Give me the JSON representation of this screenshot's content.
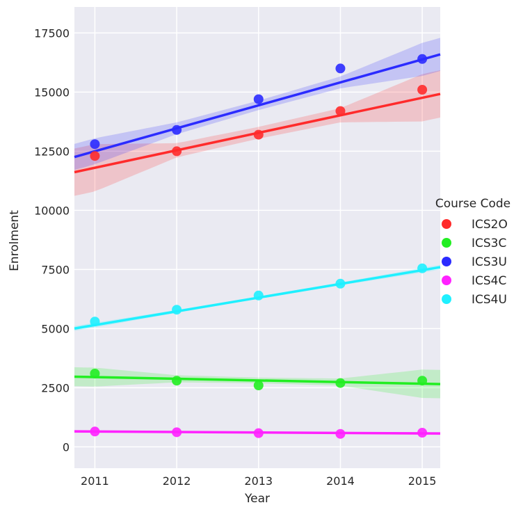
{
  "chart_data": {
    "type": "scatter",
    "xlabel": "Year",
    "ylabel": "Enrolment",
    "x_ticks": [
      "2011",
      "2012",
      "2013",
      "2014",
      "2015"
    ],
    "y_ticks": [
      "0",
      "2500",
      "5000",
      "7500",
      "10000",
      "12500",
      "15000",
      "17500"
    ],
    "xlim": [
      2010.75,
      2015.22
    ],
    "ylim": [
      -900,
      18600
    ],
    "grid": true,
    "legend_position": "right",
    "legend_title": "Course Code",
    "series": [
      {
        "name": "ICS2O",
        "color": "#ff2b2b",
        "x": [
          2011,
          2012,
          2013,
          2014,
          2015
        ],
        "y": [
          12300,
          12500,
          13200,
          14200,
          15100
        ],
        "fit_start": 11800,
        "fit_slope": 740,
        "ci_width": [
          1000,
          300,
          250,
          300,
          1000
        ]
      },
      {
        "name": "ICS3C",
        "color": "#22ee22",
        "x": [
          2011,
          2012,
          2013,
          2014,
          2015
        ],
        "y": [
          3100,
          2800,
          2600,
          2700,
          2800
        ],
        "fit_start": 2950,
        "fit_slope": -70,
        "ci_width": [
          400,
          150,
          120,
          150,
          600
        ]
      },
      {
        "name": "ICS3U",
        "color": "#2b2bff",
        "x": [
          2011,
          2012,
          2013,
          2014,
          2015
        ],
        "y": [
          12800,
          13400,
          14700,
          16000,
          16400
        ],
        "fit_start": 12500,
        "fit_slope": 970,
        "ci_width": [
          550,
          250,
          200,
          250,
          700
        ]
      },
      {
        "name": "ICS4C",
        "color": "#ff22ff",
        "x": [
          2011,
          2012,
          2013,
          2014,
          2015
        ],
        "y": [
          650,
          620,
          580,
          550,
          600
        ],
        "fit_start": 650,
        "fit_slope": -20,
        "ci_width": [
          60,
          40,
          30,
          40,
          60
        ]
      },
      {
        "name": "ICS4U",
        "color": "#1ff0ff",
        "x": [
          2011,
          2012,
          2013,
          2014,
          2015
        ],
        "y": [
          5300,
          5800,
          6400,
          6900,
          7550
        ],
        "fit_start": 5150,
        "fit_slope": 580,
        "ci_width": [
          100,
          60,
          50,
          60,
          100
        ]
      }
    ]
  }
}
